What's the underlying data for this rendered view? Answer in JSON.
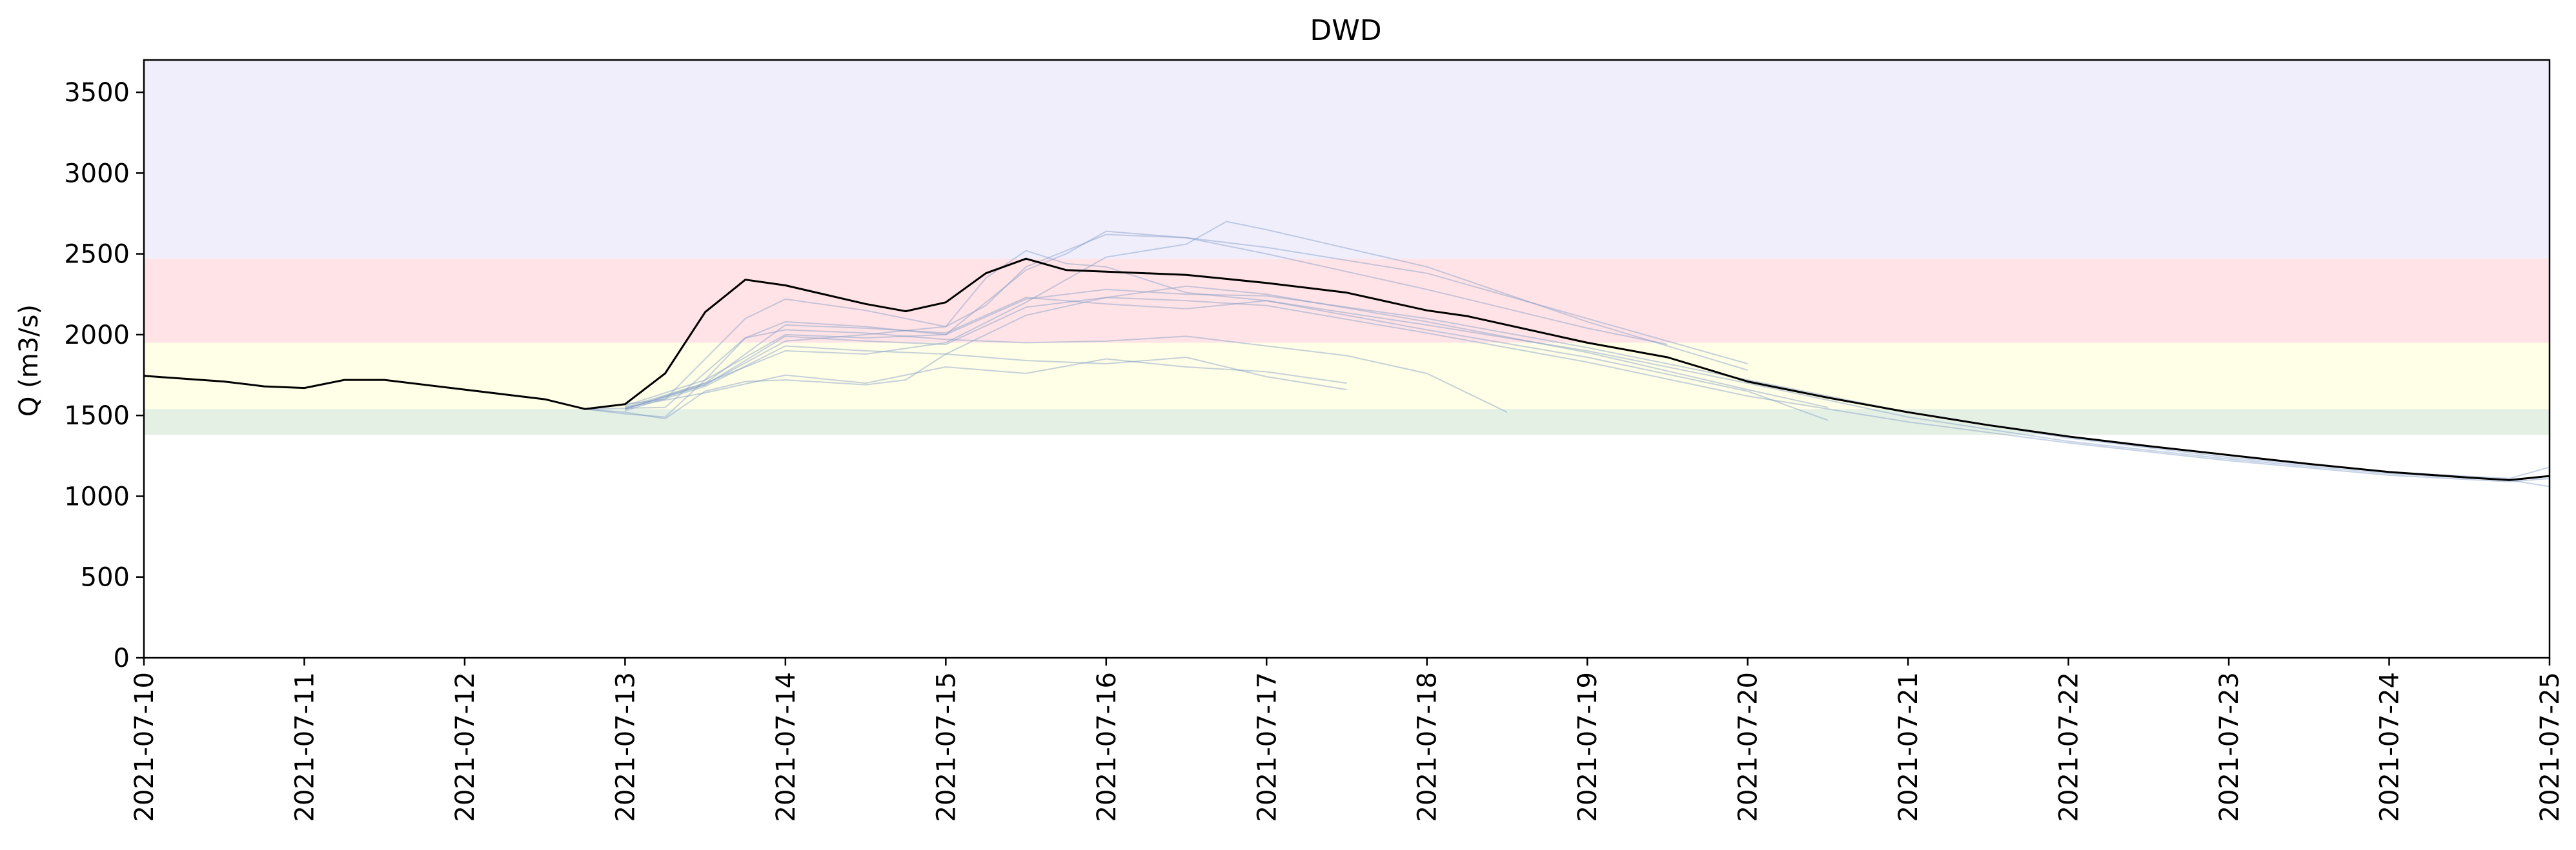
{
  "chart_data": {
    "type": "line",
    "title": "DWD",
    "xlabel": "",
    "ylabel": "Q (m3/s)",
    "x_range": [
      "2021-07-10",
      "2021-07-25"
    ],
    "ylim": [
      0,
      3700
    ],
    "yticks": [
      0,
      500,
      1000,
      1500,
      2000,
      2500,
      3000,
      3500
    ],
    "xticks": [
      "2021-07-10",
      "2021-07-11",
      "2021-07-12",
      "2021-07-13",
      "2021-07-14",
      "2021-07-15",
      "2021-07-16",
      "2021-07-17",
      "2021-07-18",
      "2021-07-19",
      "2021-07-20",
      "2021-07-21",
      "2021-07-22",
      "2021-07-23",
      "2021-07-24",
      "2021-07-25"
    ],
    "grid": false,
    "threshold_bands": [
      {
        "from": 1380,
        "to": 1540,
        "color": "#e5f0e5"
      },
      {
        "from": 1540,
        "to": 1950,
        "color": "#fffee6"
      },
      {
        "from": 1950,
        "to": 2470,
        "color": "#ffe3e6"
      },
      {
        "from": 2470,
        "to": 3700,
        "color": "#f1eefb"
      }
    ],
    "observed": {
      "color": "#000000",
      "points": [
        [
          "2021-07-10 00:00",
          1745
        ],
        [
          "2021-07-10 12:00",
          1710
        ],
        [
          "2021-07-10 18:00",
          1680
        ],
        [
          "2021-07-11 00:00",
          1670
        ],
        [
          "2021-07-11 06:00",
          1720
        ],
        [
          "2021-07-11 12:00",
          1720
        ],
        [
          "2021-07-12 00:00",
          1660
        ],
        [
          "2021-07-12 06:00",
          1630
        ],
        [
          "2021-07-12 12:00",
          1600
        ],
        [
          "2021-07-12 18:00",
          1540
        ],
        [
          "2021-07-13 00:00",
          1570
        ],
        [
          "2021-07-13 06:00",
          1760
        ],
        [
          "2021-07-13 12:00",
          2140
        ],
        [
          "2021-07-13 18:00",
          2340
        ],
        [
          "2021-07-14 00:00",
          2305
        ],
        [
          "2021-07-14 12:00",
          2190
        ],
        [
          "2021-07-14 18:00",
          2145
        ],
        [
          "2021-07-15 00:00",
          2200
        ],
        [
          "2021-07-15 06:00",
          2380
        ],
        [
          "2021-07-15 12:00",
          2470
        ],
        [
          "2021-07-15 18:00",
          2400
        ],
        [
          "2021-07-16 12:00",
          2370
        ],
        [
          "2021-07-17 00:00",
          2320
        ],
        [
          "2021-07-17 12:00",
          2260
        ],
        [
          "2021-07-18 00:00",
          2150
        ],
        [
          "2021-07-18 06:00",
          2115
        ],
        [
          "2021-07-19 00:00",
          1950
        ],
        [
          "2021-07-19 12:00",
          1860
        ],
        [
          "2021-07-20 00:00",
          1710
        ],
        [
          "2021-07-20 12:00",
          1610
        ],
        [
          "2021-07-21 00:00",
          1520
        ],
        [
          "2021-07-21 12:00",
          1440
        ],
        [
          "2021-07-22 00:00",
          1370
        ],
        [
          "2021-07-22 12:00",
          1310
        ],
        [
          "2021-07-23 00:00",
          1255
        ],
        [
          "2021-07-23 12:00",
          1200
        ],
        [
          "2021-07-24 00:00",
          1150
        ],
        [
          "2021-07-24 12:00",
          1115
        ],
        [
          "2021-07-24 18:00",
          1100
        ],
        [
          "2021-07-25 00:00",
          1125
        ]
      ]
    },
    "ensemble_color": "#7f9cc8",
    "ensemble": [
      {
        "points": [
          [
            "2021-07-12 18:00",
            1540
          ],
          [
            "2021-07-13 00:00",
            1510
          ],
          [
            "2021-07-13 06:00",
            1490
          ],
          [
            "2021-07-13 12:00",
            1720
          ],
          [
            "2021-07-13 18:00",
            1980
          ],
          [
            "2021-07-14 00:00",
            2030
          ],
          [
            "2021-07-14 12:00",
            2010
          ],
          [
            "2021-07-15 00:00",
            1970
          ],
          [
            "2021-07-15 12:00",
            1950
          ],
          [
            "2021-07-16 00:00",
            1960
          ],
          [
            "2021-07-16 12:00",
            1990
          ],
          [
            "2021-07-17 00:00",
            1930
          ],
          [
            "2021-07-17 12:00",
            1870
          ],
          [
            "2021-07-18 00:00",
            1760
          ],
          [
            "2021-07-18 12:00",
            1520
          ]
        ]
      },
      {
        "points": [
          [
            "2021-07-12 18:00",
            1540
          ],
          [
            "2021-07-13 00:00",
            1520
          ],
          [
            "2021-07-13 06:00",
            1480
          ],
          [
            "2021-07-13 12:00",
            1650
          ],
          [
            "2021-07-13 18:00",
            1710
          ],
          [
            "2021-07-14 00:00",
            1720
          ],
          [
            "2021-07-14 12:00",
            1690
          ],
          [
            "2021-07-14 18:00",
            1720
          ],
          [
            "2021-07-15 00:00",
            1880
          ],
          [
            "2021-07-15 12:00",
            2120
          ],
          [
            "2021-07-16 00:00",
            2230
          ],
          [
            "2021-07-16 12:00",
            2300
          ],
          [
            "2021-07-17 00:00",
            2250
          ],
          [
            "2021-07-18 00:00",
            2080
          ],
          [
            "2021-07-19 00:00",
            1890
          ],
          [
            "2021-07-20 00:00",
            1660
          ],
          [
            "2021-07-20 12:00",
            1550
          ]
        ]
      },
      {
        "points": [
          [
            "2021-07-12 18:00",
            1540
          ],
          [
            "2021-07-13 06:00",
            1550
          ],
          [
            "2021-07-13 18:00",
            1980
          ],
          [
            "2021-07-14 00:00",
            2080
          ],
          [
            "2021-07-14 12:00",
            2050
          ],
          [
            "2021-07-15 00:00",
            2000
          ],
          [
            "2021-07-15 12:00",
            2400
          ],
          [
            "2021-07-15 18:00",
            2500
          ],
          [
            "2021-07-16 00:00",
            2640
          ],
          [
            "2021-07-16 12:00",
            2600
          ],
          [
            "2021-07-17 00:00",
            2500
          ],
          [
            "2021-07-18 00:00",
            2280
          ],
          [
            "2021-07-19 00:00",
            2040
          ],
          [
            "2021-07-19 12:00",
            1940
          ]
        ]
      },
      {
        "points": [
          [
            "2021-07-12 18:00",
            1540
          ],
          [
            "2021-07-13 06:00",
            1600
          ],
          [
            "2021-07-13 18:00",
            2100
          ],
          [
            "2021-07-14 00:00",
            2220
          ],
          [
            "2021-07-14 12:00",
            2150
          ],
          [
            "2021-07-15 00:00",
            2050
          ],
          [
            "2021-07-15 06:00",
            2180
          ],
          [
            "2021-07-15 12:00",
            2420
          ],
          [
            "2021-07-16 00:00",
            2620
          ],
          [
            "2021-07-16 12:00",
            2600
          ],
          [
            "2021-07-17 00:00",
            2540
          ],
          [
            "2021-07-18 00:00",
            2380
          ],
          [
            "2021-07-19 00:00",
            2100
          ],
          [
            "2021-07-20 00:00",
            1820
          ]
        ]
      },
      {
        "points": [
          [
            "2021-07-13 00:00",
            1540
          ],
          [
            "2021-07-13 12:00",
            1700
          ],
          [
            "2021-07-14 00:00",
            1900
          ],
          [
            "2021-07-14 12:00",
            1880
          ],
          [
            "2021-07-15 00:00",
            1950
          ],
          [
            "2021-07-15 12:00",
            2200
          ],
          [
            "2021-07-16 00:00",
            2480
          ],
          [
            "2021-07-16 12:00",
            2560
          ],
          [
            "2021-07-16 18:00",
            2700
          ],
          [
            "2021-07-17 00:00",
            2650
          ],
          [
            "2021-07-18 00:00",
            2420
          ],
          [
            "2021-07-19 00:00",
            2080
          ],
          [
            "2021-07-20 00:00",
            1780
          ]
        ]
      },
      {
        "points": [
          [
            "2021-07-13 00:00",
            1530
          ],
          [
            "2021-07-13 12:00",
            1680
          ],
          [
            "2021-07-14 00:00",
            1930
          ],
          [
            "2021-07-14 12:00",
            1900
          ],
          [
            "2021-07-15 00:00",
            1880
          ],
          [
            "2021-07-15 12:00",
            1840
          ],
          [
            "2021-07-16 00:00",
            1820
          ],
          [
            "2021-07-16 12:00",
            1860
          ],
          [
            "2021-07-17 00:00",
            1740
          ],
          [
            "2021-07-17 12:00",
            1660
          ]
        ]
      },
      {
        "points": [
          [
            "2021-07-13 00:00",
            1550
          ],
          [
            "2021-07-13 12:00",
            1640
          ],
          [
            "2021-07-14 00:00",
            1750
          ],
          [
            "2021-07-14 12:00",
            1700
          ],
          [
            "2021-07-15 00:00",
            1800
          ],
          [
            "2021-07-15 12:00",
            1760
          ],
          [
            "2021-07-16 00:00",
            1850
          ],
          [
            "2021-07-16 12:00",
            1800
          ],
          [
            "2021-07-17 00:00",
            1770
          ],
          [
            "2021-07-17 12:00",
            1700
          ]
        ]
      },
      {
        "points": [
          [
            "2021-07-13 00:00",
            1540
          ],
          [
            "2021-07-13 12:00",
            1690
          ],
          [
            "2021-07-14 00:00",
            1960
          ],
          [
            "2021-07-14 12:00",
            2000
          ],
          [
            "2021-07-15 00:00",
            2050
          ],
          [
            "2021-07-15 06:00",
            2350
          ],
          [
            "2021-07-15 12:00",
            2520
          ],
          [
            "2021-07-15 18:00",
            2440
          ],
          [
            "2021-07-16 00:00",
            2420
          ],
          [
            "2021-07-16 12:00",
            2260
          ],
          [
            "2021-07-17 00:00",
            2210
          ],
          [
            "2021-07-18 00:00",
            2030
          ],
          [
            "2021-07-19 00:00",
            1860
          ],
          [
            "2021-07-20 00:00",
            1650
          ],
          [
            "2021-07-20 12:00",
            1470
          ]
        ]
      },
      {
        "points": [
          [
            "2021-07-13 00:00",
            1560
          ],
          [
            "2021-07-13 12:00",
            1720
          ],
          [
            "2021-07-14 00:00",
            2000
          ],
          [
            "2021-07-14 12:00",
            1980
          ],
          [
            "2021-07-15 00:00",
            2000
          ],
          [
            "2021-07-15 12:00",
            2220
          ],
          [
            "2021-07-16 00:00",
            2280
          ],
          [
            "2021-07-16 12:00",
            2250
          ],
          [
            "2021-07-17 00:00",
            2240
          ],
          [
            "2021-07-18 00:00",
            2100
          ],
          [
            "2021-07-19 00:00",
            1920
          ],
          [
            "2021-07-20 00:00",
            1720
          ],
          [
            "2021-07-21 00:00",
            1520
          ],
          [
            "2021-07-22 00:00",
            1360
          ],
          [
            "2021-07-23 00:00",
            1240
          ],
          [
            "2021-07-24 00:00",
            1150
          ],
          [
            "2021-07-24 18:00",
            1110
          ],
          [
            "2021-07-25 00:00",
            1180
          ]
        ]
      },
      {
        "points": [
          [
            "2021-07-13 00:00",
            1550
          ],
          [
            "2021-07-13 12:00",
            1700
          ],
          [
            "2021-07-14 00:00",
            2060
          ],
          [
            "2021-07-14 12:00",
            2040
          ],
          [
            "2021-07-15 00:00",
            2010
          ],
          [
            "2021-07-15 12:00",
            2230
          ],
          [
            "2021-07-16 00:00",
            2190
          ],
          [
            "2021-07-16 12:00",
            2160
          ],
          [
            "2021-07-17 00:00",
            2210
          ],
          [
            "2021-07-18 00:00",
            2060
          ],
          [
            "2021-07-19 00:00",
            1900
          ],
          [
            "2021-07-20 00:00",
            1700
          ],
          [
            "2021-07-21 00:00",
            1490
          ],
          [
            "2021-07-22 00:00",
            1340
          ],
          [
            "2021-07-23 00:00",
            1230
          ],
          [
            "2021-07-24 00:00",
            1140
          ],
          [
            "2021-07-24 18:00",
            1100
          ],
          [
            "2021-07-25 00:00",
            1060
          ]
        ]
      },
      {
        "points": [
          [
            "2021-07-13 00:00",
            1540
          ],
          [
            "2021-07-13 12:00",
            1690
          ],
          [
            "2021-07-14 00:00",
            1990
          ],
          [
            "2021-07-14 12:00",
            1960
          ],
          [
            "2021-07-15 00:00",
            1940
          ],
          [
            "2021-07-15 12:00",
            2170
          ],
          [
            "2021-07-16 00:00",
            2230
          ],
          [
            "2021-07-16 12:00",
            2210
          ],
          [
            "2021-07-17 00:00",
            2180
          ],
          [
            "2021-07-18 00:00",
            2010
          ],
          [
            "2021-07-19 00:00",
            1830
          ],
          [
            "2021-07-20 00:00",
            1620
          ],
          [
            "2021-07-21 00:00",
            1460
          ],
          [
            "2021-07-22 00:00",
            1330
          ],
          [
            "2021-07-23 00:00",
            1220
          ],
          [
            "2021-07-24 00:00",
            1130
          ],
          [
            "2021-07-24 18:00",
            1090
          ],
          [
            "2021-07-25 00:00",
            1110
          ]
        ]
      }
    ]
  }
}
